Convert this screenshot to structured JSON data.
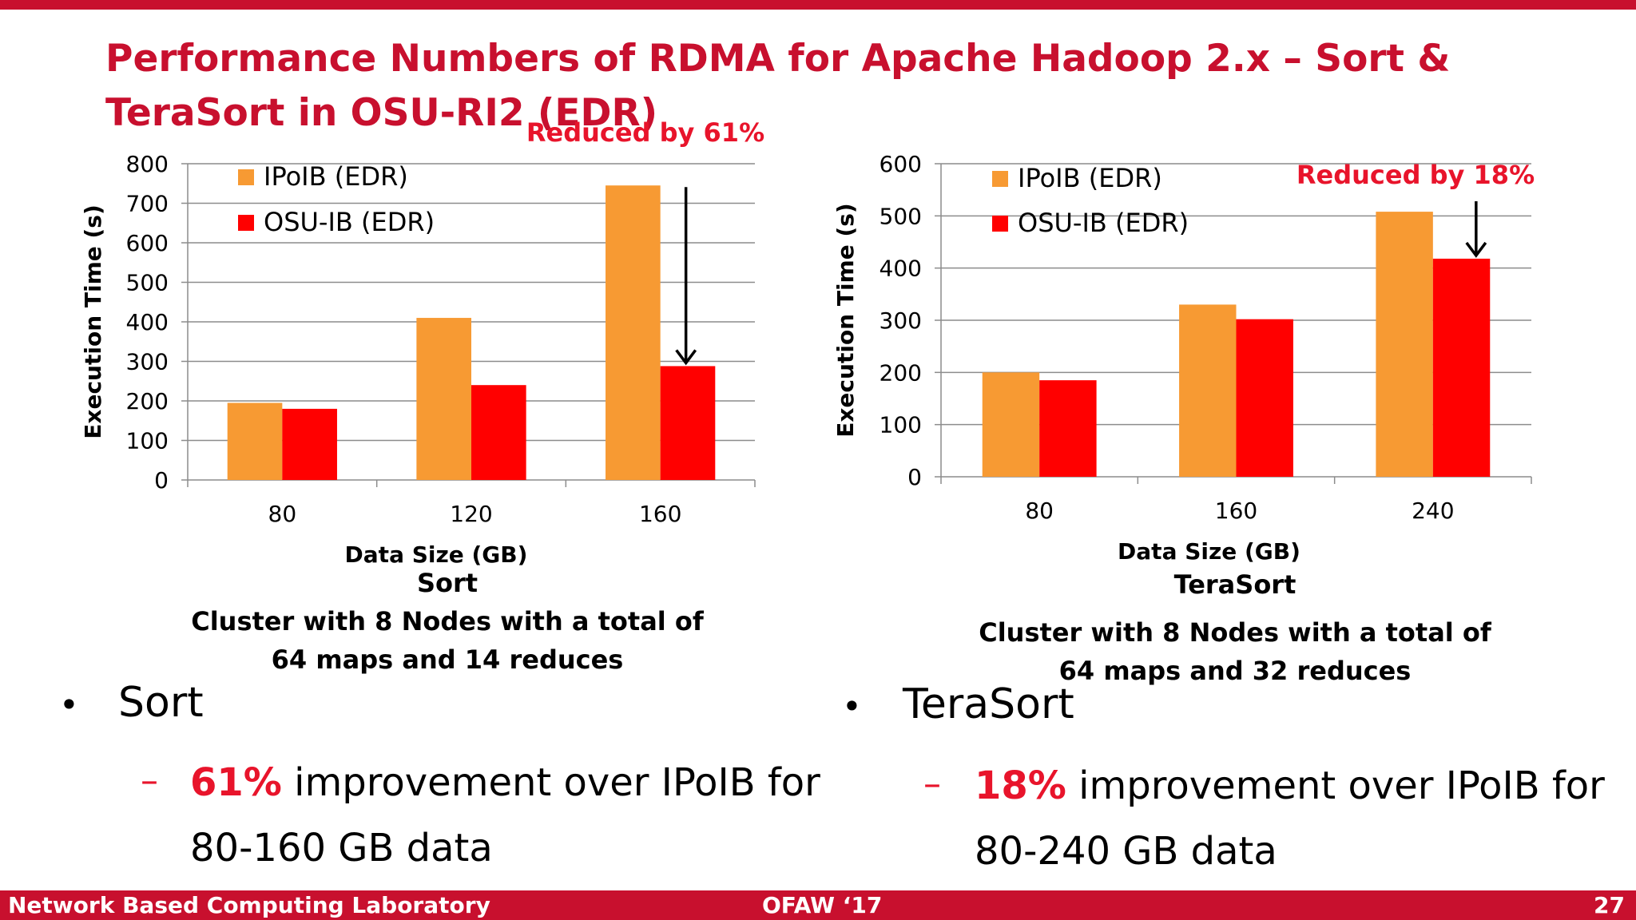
{
  "slide": {
    "title": "Performance Numbers of RDMA for Apache Hadoop 2.x – Sort & TeraSort in OSU-RI2 (EDR)",
    "footer_left": "Network Based Computing Laboratory",
    "footer_center": "OFAW ‘17",
    "footer_right": "27"
  },
  "left_caption": {
    "name": "Sort",
    "line1": "Cluster with 8 Nodes with a total of",
    "line2": "64 maps and 14 reduces"
  },
  "right_caption": {
    "name": "TeraSort",
    "line1": "Cluster with 8 Nodes with a total of",
    "line2": "64 maps and 32 reduces"
  },
  "bullets": {
    "left": {
      "head": "Sort",
      "pct": "61%",
      "rest": " improvement over IPoIB for",
      "line2": "80-160 GB data"
    },
    "right": {
      "head": "TeraSort",
      "pct": "18%",
      "rest": " improvement over IPoIB for",
      "line2": "80-240 GB data"
    }
  },
  "colors": {
    "ipoib": "#f79a33",
    "osuib": "#ff0000",
    "accent": "#e8142b",
    "brand": "#c8102e"
  },
  "chart_data": [
    {
      "type": "bar",
      "categories": [
        "80",
        "120",
        "160"
      ],
      "series": [
        {
          "name": "IPoIB (EDR)",
          "values": [
            195,
            410,
            745
          ]
        },
        {
          "name": "OSU-IB (EDR)",
          "values": [
            180,
            240,
            288
          ]
        }
      ],
      "ylim": [
        0,
        800
      ],
      "yticks": [
        0,
        100,
        200,
        300,
        400,
        500,
        600,
        700,
        800
      ],
      "xlabel": "Data Size (GB)",
      "ylabel": "Execution Time (s)",
      "annotation": "Reduced by 61%",
      "legend": "top-left",
      "grid": true
    },
    {
      "type": "bar",
      "categories": [
        "80",
        "160",
        "240"
      ],
      "series": [
        {
          "name": "IPoIB (EDR)",
          "values": [
            200,
            330,
            508
          ]
        },
        {
          "name": "OSU-IB (EDR)",
          "values": [
            185,
            302,
            418
          ]
        }
      ],
      "ylim": [
        0,
        600
      ],
      "yticks": [
        0,
        100,
        200,
        300,
        400,
        500,
        600
      ],
      "xlabel": "Data Size (GB)",
      "ylabel": "Execution Time (s)",
      "annotation": "Reduced by 18%",
      "legend": "top-left",
      "grid": true
    }
  ]
}
